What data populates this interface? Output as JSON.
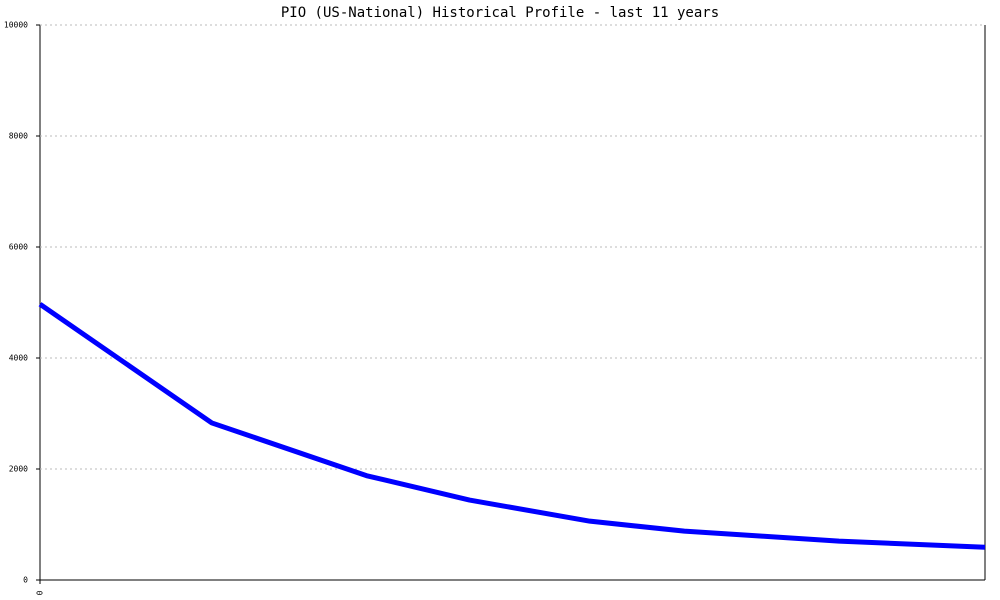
{
  "chart_data": {
    "type": "line",
    "title": "PIO (US-National) Historical Profile - last 11 years",
    "x": [
      0,
      2,
      3.8,
      5,
      6.4,
      7.5,
      8.4,
      9.3,
      11
    ],
    "xlim": [
      0,
      11
    ],
    "xticks": [
      0
    ],
    "series": [
      {
        "color": "#0000ff",
        "values": [
          4970,
          2830,
          1880,
          1440,
          1060,
          880,
          790,
          700,
          590
        ]
      }
    ],
    "ylim": [
      0,
      10000
    ],
    "yticks": [
      0,
      2000,
      4000,
      6000,
      8000,
      10000
    ],
    "grid": true
  }
}
